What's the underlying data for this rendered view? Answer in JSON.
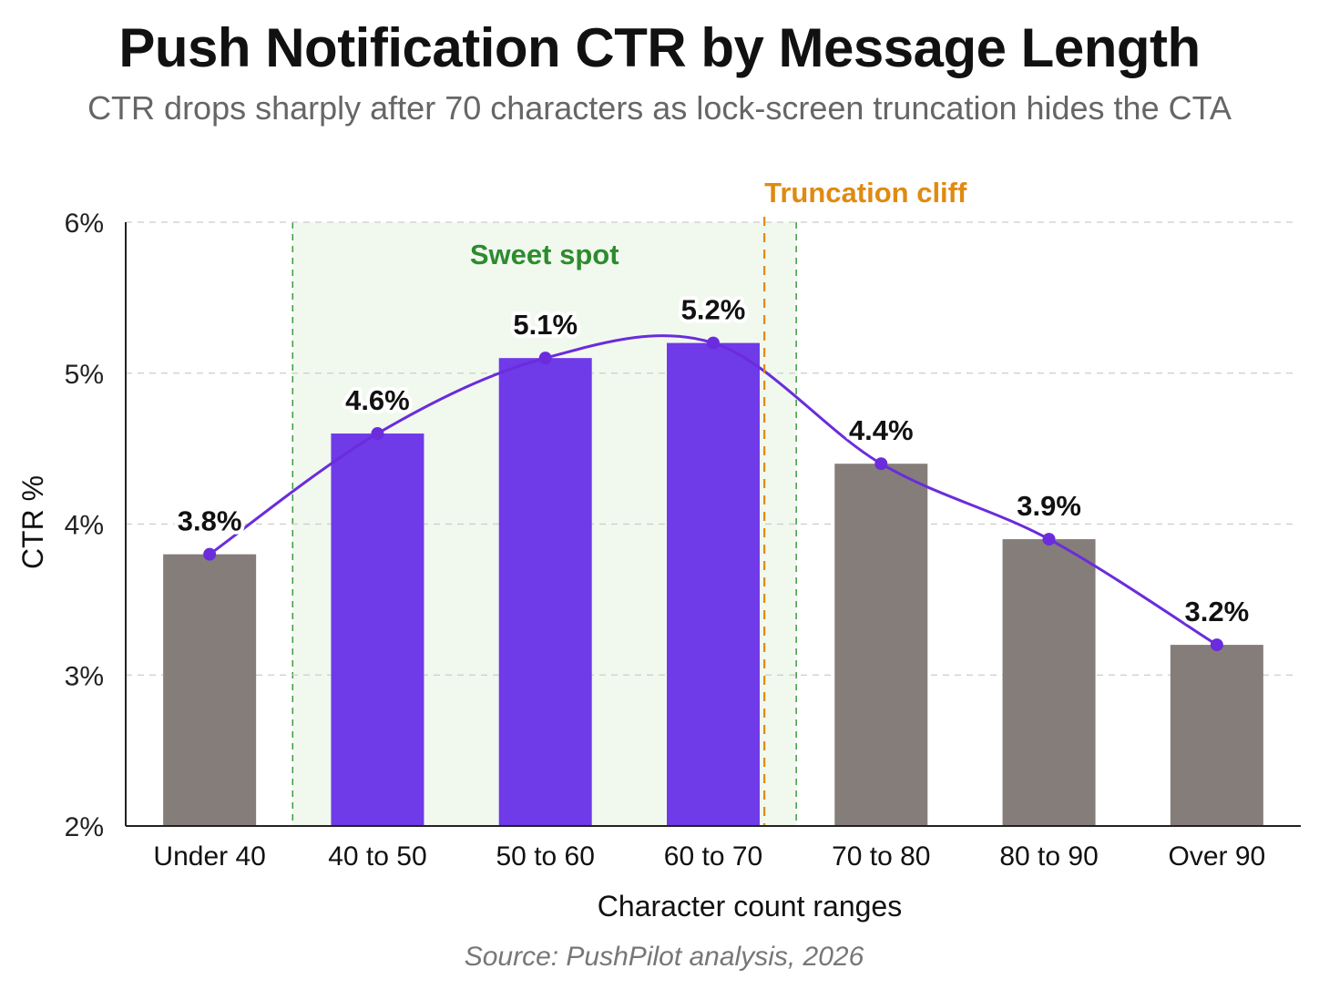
{
  "chart_data": {
    "type": "bar",
    "title": "Push Notification CTR by Message Length",
    "subtitle": "CTR drops sharply after 70 characters as lock-screen truncation hides the CTA",
    "xlabel": "Character count ranges",
    "ylabel": "CTR %",
    "ylim": [
      2,
      6
    ],
    "yticks": [
      2,
      3,
      4,
      5,
      6
    ],
    "ytick_suffix": "%",
    "grid": "horizontal-dashed",
    "categories": [
      "Under 40",
      "40 to 50",
      "50 to 60",
      "60 to 70",
      "70 to 80",
      "80 to 90",
      "Over 90"
    ],
    "values": [
      3.8,
      4.6,
      5.1,
      5.2,
      4.4,
      3.9,
      3.2
    ],
    "data_labels": [
      "3.8%",
      "4.6%",
      "5.1%",
      "5.2%",
      "4.4%",
      "3.9%",
      "3.2%"
    ],
    "highlighted": [
      false,
      true,
      true,
      true,
      false,
      false,
      false
    ],
    "overlay_line": "smoothed trend through bar tops",
    "annotations": {
      "sweet_spot": {
        "label": "Sweet spot",
        "range": [
          "40 to 50",
          "60 to 70"
        ]
      },
      "truncation": {
        "label": "Truncation cliff",
        "at": "between 60 to 70 and 70 to 80"
      }
    },
    "source": "Source: PushPilot analysis, 2026"
  },
  "colors": {
    "highlight_bar": "#6f3ae8",
    "default_bar": "#857d7a",
    "trend_line": "#6a2cdc",
    "sweet_spot_fill": "#f1f9ef",
    "sweet_spot_line": "#3d9b3d",
    "truncation_line": "#e08a12",
    "grid": "#cccccc"
  }
}
